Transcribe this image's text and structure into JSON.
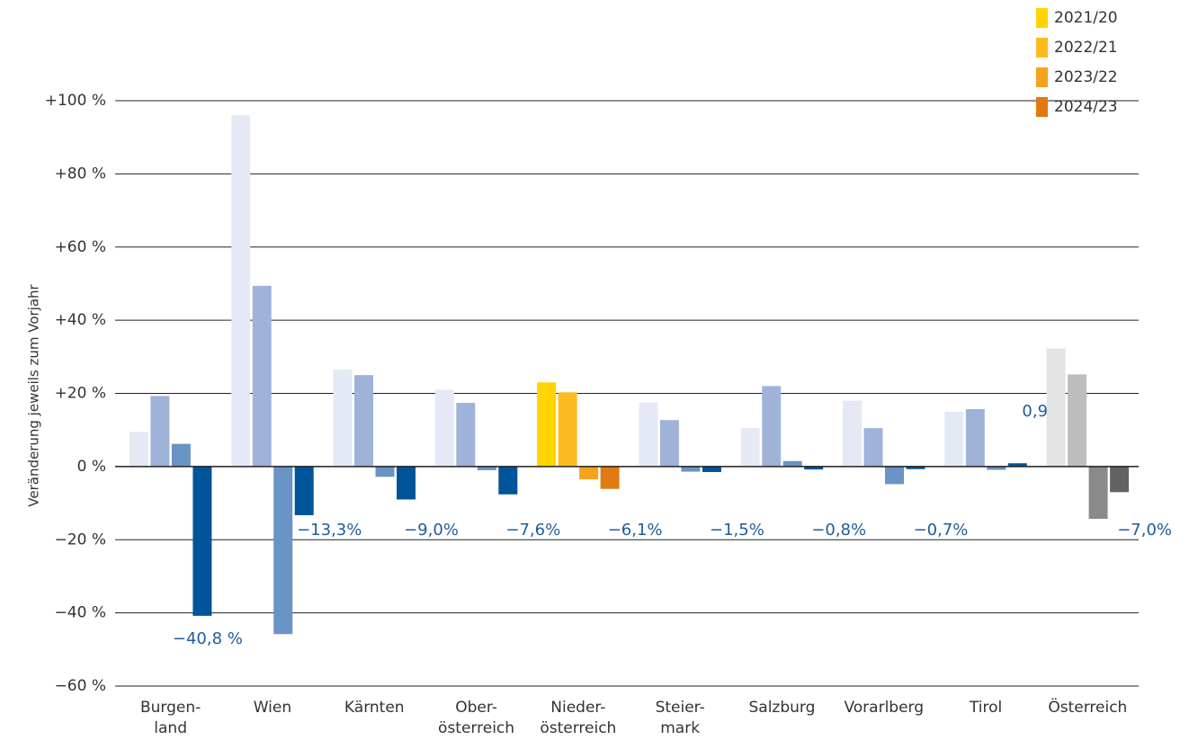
{
  "chart_data": {
    "type": "bar",
    "y_label": "Veränderung jeweils zum Vorjahr",
    "categories": [
      "Burgen-\nland",
      "Wien",
      "Kärnten",
      "Ober-\nösterreich",
      "Nieder-\nösterreich",
      "Steier-\nmark",
      "Salzburg",
      "Vorarlberg",
      "Tirol",
      "Österreich"
    ],
    "series": [
      {
        "name": "2021/20",
        "color": "#ffd400",
        "colors": [
          "#e4e9f5",
          "#e4e9f5",
          "#e4e9f5",
          "#e4e9f5",
          "#ffd400",
          "#e4e9f5",
          "#e4e9f5",
          "#e4e9f5",
          "#e4e9f5",
          "#e3e3e3"
        ],
        "values": [
          9.5,
          96,
          26.5,
          21,
          23,
          17.5,
          10.5,
          18,
          15,
          32.3
        ]
      },
      {
        "name": "2022/21",
        "color": "#fbbb1f",
        "colors": [
          "#9fb3d9",
          "#9fb3d9",
          "#9fb3d9",
          "#9fb3d9",
          "#fbbb1f",
          "#9fb3d9",
          "#9fb3d9",
          "#9fb3d9",
          "#9fb3d9",
          "#bdbdbd"
        ],
        "values": [
          19.3,
          49.4,
          25,
          17.4,
          20.3,
          12.7,
          22,
          10.5,
          15.7,
          25.2
        ]
      },
      {
        "name": "2023/22",
        "color": "#f5a21e",
        "colors": [
          "#6a93c6",
          "#6a93c6",
          "#6a93c6",
          "#6a93c6",
          "#f5a21e",
          "#6a93c6",
          "#6a93c6",
          "#6a93c6",
          "#6a93c6",
          "#8a8a8a"
        ],
        "values": [
          6.2,
          -45.8,
          -2.8,
          -1,
          -3.5,
          -1.4,
          1.5,
          -4.8,
          -0.9,
          -14.3
        ]
      },
      {
        "name": "2024/23",
        "color": "#e07a10",
        "colors": [
          "#00559a",
          "#00559a",
          "#00559a",
          "#00559a",
          "#e07a10",
          "#00559a",
          "#00559a",
          "#00559a",
          "#00559a",
          "#636363"
        ],
        "values": [
          -40.8,
          -13.3,
          -9.0,
          -7.6,
          -6.1,
          -1.5,
          -0.8,
          -0.7,
          0.9,
          -7.0
        ],
        "value_labels": [
          "−40,8 %",
          "−13,3%",
          "−9,0%",
          "−7,6%",
          "−6,1%",
          "−1,5%",
          "−0,8%",
          "−0,7%",
          "0,9%",
          "−7,0%"
        ]
      }
    ],
    "ylim": [
      -60,
      100
    ],
    "yticks": [
      {
        "value": -60,
        "label": "−60 %"
      },
      {
        "value": -40,
        "label": "−40 %"
      },
      {
        "value": -20,
        "label": "−20 %"
      },
      {
        "value": 0,
        "label": "0 %"
      },
      {
        "value": 20,
        "label": "+20 %"
      },
      {
        "value": 40,
        "label": "+40 %"
      },
      {
        "value": 60,
        "label": "+60 %"
      },
      {
        "value": 80,
        "label": "+80 %"
      },
      {
        "value": 100,
        "label": "+100 %"
      }
    ],
    "grid": true,
    "legend": "top-right"
  }
}
